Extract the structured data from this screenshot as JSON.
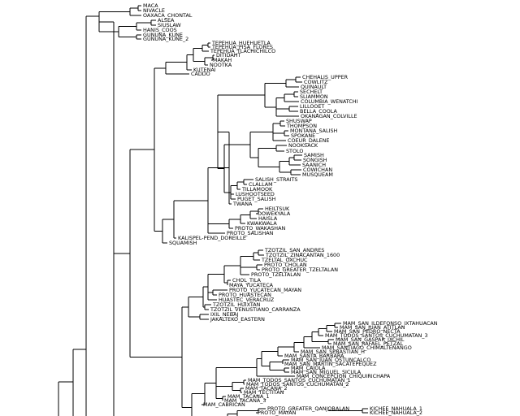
{
  "tree": {
    "leaves": [
      "MACA",
      "NIVACLE",
      "OAXACA_CHONTAL",
      "ALSEA",
      "SIUSLAW",
      "HANIS_COOS",
      "GUNUNA_KUNE",
      "GUNUNA_KUNE_2",
      "TEPEHUA_HUEHUETLA",
      "TEPEHUA_PISA_FLORES",
      "TEPEHUA_TLACHICHILCO",
      "DITIDAHT",
      "MAKAH",
      "NOOTKA",
      "KUTENAI",
      "CADDO",
      "CHEHALIS_UPPER",
      "COWLITZ",
      "QUINAULT",
      "SECHELT",
      "SLIAMMON",
      "COLUMBIA_WENATCHI",
      "LILLOOET",
      "BELLA_COOLA",
      "OKANAGAN_COLVILLE",
      "SHUSWAP",
      "THOMPSON",
      "MONTANA_SALISH",
      "SPOKANE",
      "COEUR_DALENE",
      "NOOKSACK",
      "STOLO",
      "SAMISH",
      "SONGISH",
      "SAANICH",
      "COWICHAN",
      "MUSQUEAM",
      "SALISH_STRAITS",
      "CLALLAM",
      "TILLAMOOK",
      "LUSHOOTSEED",
      "PUGET_SALISH",
      "TWANA",
      "HEILTSUK",
      "OOWEKYALA",
      "HAISLA",
      "KWAKWALA",
      "PROTO_WAKASHAN",
      "PROTO_SALISHAN",
      "KALISPEL-PEND_DOREILLE",
      "SQUAMISH",
      "TZOTZIL_SAN_ANDRES",
      "TZOTZIL_ZINACANTAN_1600",
      "TZELTAL_OXCHUC",
      "PROTO_CHOLAN",
      "PROTO_GREATER_TZELTALAN",
      "PROTO_TZELTALAN",
      "CHOL_TILA",
      "MAYA_YUCATECA",
      "PROTO_YUCATECAN_MAYAN",
      "PROTO_HUASTECAN",
      "HUASTEC_VERACRUZ",
      "TZOTZIL_HUIXTAN",
      "TZOTZIL_VENUSTIANO_CARRANZA",
      "IXIL_NEBAJ",
      "JAKALTEKO_EASTERN",
      "MAM_SAN_ILDEFONSO_IXTAHUACAN",
      "MAM_SAN_JUAN_ATITLAN",
      "MAM_SAN_PEDRO_NECTA",
      "MAM_TODOS_SANTOS_CUCHUMATAN_3",
      "MAM_SAN_GASPAR_IXCHIL",
      "MAM_SAN_RAFAEL_PETZAL",
      "MAM_SANTIAGO_CHIMALTENANGO",
      "MAM_SAN_SEBASTIAN_H",
      "MAM_SANTA_BARBARA",
      "MAM_SAN_JUAN_OSTUNCALCO",
      "MAM_SAN_MARTIN_SACATEPEQUEZ",
      "MAM_CAJOLA",
      "MAM_SAN_MIGUEL_SICULA",
      "MAM_CONCEPCION_CHIQUIRICHAPA",
      "MAM_TODOS_SANTOS_CUCHUMATAN_1",
      "MAM_TODOS_SANTOS_CUCHUMATAN_2",
      "MAM_TACANA_2",
      "MAM_TECTITAN",
      "MAM_TACANA_1",
      "MAM_TACANA_3",
      "MAM_CABRICAN",
      "PROTO_GREATER_QANJOBALAN",
      "PROTO_MAYAN",
      "PROTO_MAMEAN",
      "PROTO_GREATER_QUICHEAN",
      "PROTO_MAYA",
      "KICHEE_NAHUALA_1",
      "KICHEE_NAHUALA_2"
    ]
  }
}
